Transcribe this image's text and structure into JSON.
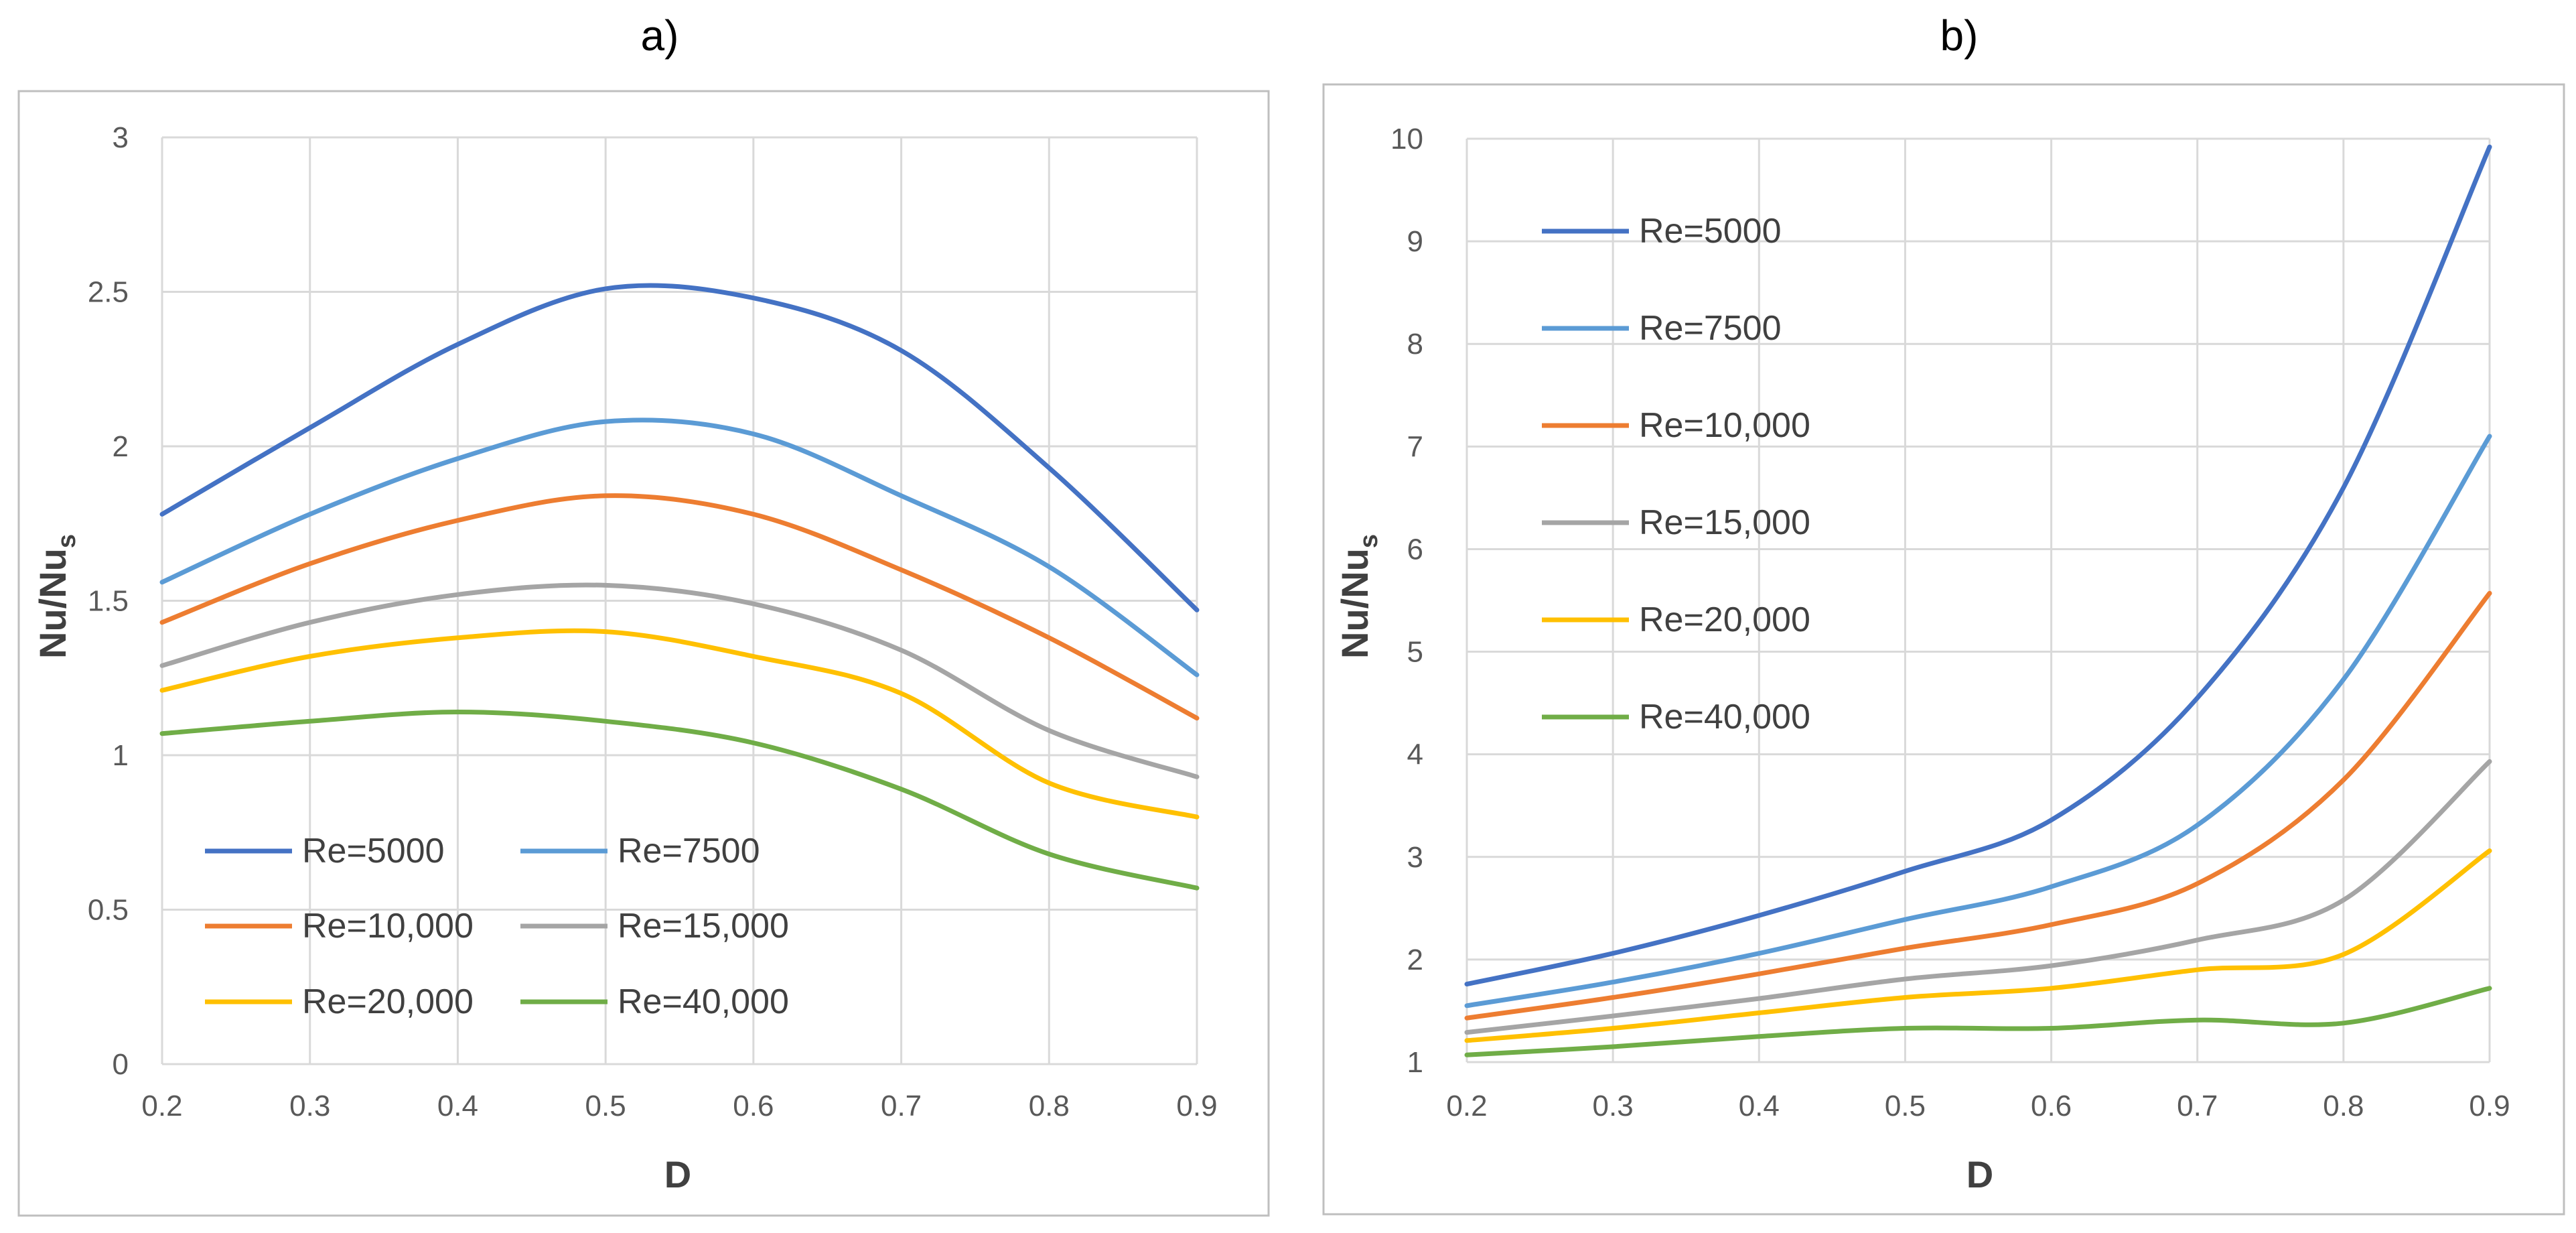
{
  "figure": {
    "colors": {
      "frame": "#bfbfbf",
      "grid": "#d9d9d9",
      "axis_text": "#595959",
      "label_text": "#404040",
      "panel_title": "#000000"
    }
  },
  "chart_data": [
    {
      "id": "a",
      "panel_title": "a)",
      "type": "line",
      "xlabel": "D",
      "ylabel_main": "Nu/Nu",
      "ylabel_sub": "s",
      "xlim": [
        0.2,
        0.9
      ],
      "ylim": [
        0,
        3
      ],
      "xticks": [
        "0.2",
        "0.3",
        "0.4",
        "0.5",
        "0.6",
        "0.7",
        "0.8",
        "0.9"
      ],
      "yticks": [
        "0",
        "0.5",
        "1",
        "1.5",
        "2",
        "2.5",
        "3"
      ],
      "grid": true,
      "legend_position": "bottom-left",
      "legend_columns": 2,
      "x": [
        0.2,
        0.3,
        0.4,
        0.5,
        0.6,
        0.7,
        0.8,
        0.9
      ],
      "series": [
        {
          "name": "Re=5000",
          "color": "#4472c4",
          "values": [
            1.78,
            2.06,
            2.33,
            2.51,
            2.48,
            2.31,
            1.93,
            1.47
          ]
        },
        {
          "name": "Re=7500",
          "color": "#5b9bd5",
          "values": [
            1.56,
            1.78,
            1.96,
            2.08,
            2.04,
            1.84,
            1.61,
            1.26
          ]
        },
        {
          "name": "Re=10,000",
          "color": "#ed7d31",
          "values": [
            1.43,
            1.62,
            1.76,
            1.84,
            1.78,
            1.6,
            1.38,
            1.12
          ]
        },
        {
          "name": "Re=15,000",
          "color": "#a5a5a5",
          "values": [
            1.29,
            1.43,
            1.52,
            1.55,
            1.49,
            1.34,
            1.08,
            0.93
          ]
        },
        {
          "name": "Re=20,000",
          "color": "#ffc000",
          "values": [
            1.21,
            1.32,
            1.38,
            1.4,
            1.32,
            1.2,
            0.91,
            0.8
          ]
        },
        {
          "name": "Re=40,000",
          "color": "#70ad47",
          "values": [
            1.07,
            1.11,
            1.14,
            1.11,
            1.04,
            0.89,
            0.68,
            0.57
          ]
        }
      ]
    },
    {
      "id": "b",
      "panel_title": "b)",
      "type": "line",
      "xlabel": "D",
      "ylabel_main": "Nu/Nu",
      "ylabel_sub": "s",
      "xlim": [
        0.2,
        0.9
      ],
      "ylim": [
        1,
        10
      ],
      "xticks": [
        "0.2",
        "0.3",
        "0.4",
        "0.5",
        "0.6",
        "0.7",
        "0.8",
        "0.9"
      ],
      "yticks": [
        "1",
        "2",
        "3",
        "4",
        "5",
        "6",
        "7",
        "8",
        "9",
        "10"
      ],
      "grid": true,
      "legend_position": "top-left",
      "legend_columns": 1,
      "x": [
        0.2,
        0.3,
        0.4,
        0.5,
        0.6,
        0.7,
        0.8,
        0.9
      ],
      "series": [
        {
          "name": "Re=5000",
          "color": "#4472c4",
          "values": [
            1.76,
            2.06,
            2.43,
            2.86,
            3.36,
            4.55,
            6.6,
            9.92
          ]
        },
        {
          "name": "Re=7500",
          "color": "#5b9bd5",
          "values": [
            1.55,
            1.78,
            2.06,
            2.39,
            2.71,
            3.31,
            4.73,
            7.1
          ]
        },
        {
          "name": "Re=10,000",
          "color": "#ed7d31",
          "values": [
            1.43,
            1.63,
            1.86,
            2.11,
            2.34,
            2.74,
            3.75,
            5.57
          ]
        },
        {
          "name": "Re=15,000",
          "color": "#a5a5a5",
          "values": [
            1.29,
            1.45,
            1.62,
            1.81,
            1.94,
            2.19,
            2.58,
            3.93
          ]
        },
        {
          "name": "Re=20,000",
          "color": "#ffc000",
          "values": [
            1.21,
            1.33,
            1.48,
            1.63,
            1.72,
            1.9,
            2.05,
            3.06
          ]
        },
        {
          "name": "Re=40,000",
          "color": "#70ad47",
          "values": [
            1.07,
            1.15,
            1.25,
            1.33,
            1.33,
            1.41,
            1.38,
            1.72
          ]
        }
      ]
    }
  ]
}
